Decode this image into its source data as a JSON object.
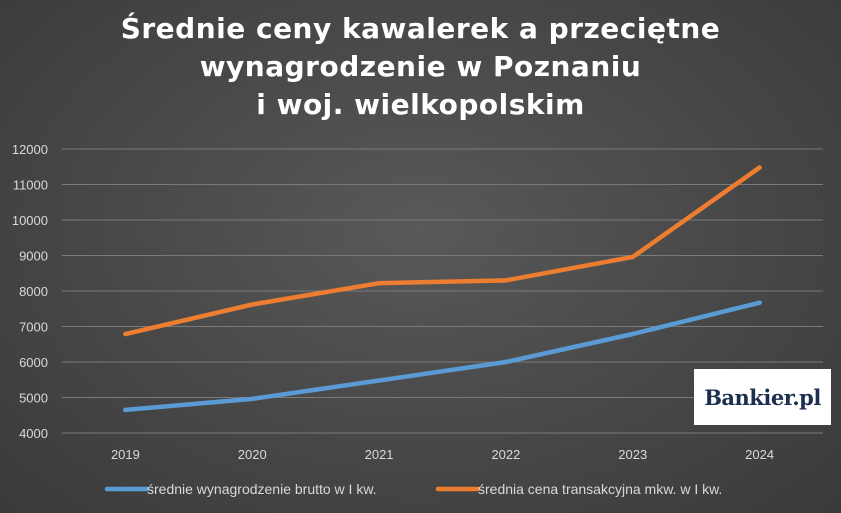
{
  "chart_data": {
    "type": "line",
    "title_lines": [
      "Średnie ceny kawalerek a przeciętne",
      "wynagrodzenie w Poznaniu",
      "i woj. wielkopolskim"
    ],
    "categories": [
      "2019",
      "2020",
      "2021",
      "2022",
      "2023",
      "2024"
    ],
    "ylim": [
      4000,
      12000
    ],
    "yticks": [
      4000,
      5000,
      6000,
      7000,
      8000,
      9000,
      10000,
      11000,
      12000
    ],
    "grid": true,
    "legend_position": "bottom",
    "series": [
      {
        "name": "średnie wynagrodzenie brutto w I kw.",
        "color": "#5b9bd5",
        "values": [
          4650,
          4960,
          5480,
          6000,
          6790,
          7670
        ]
      },
      {
        "name": "średnia cena transakcyjna mkw. w I kw.",
        "color": "#ed7d31",
        "values": [
          6790,
          7620,
          8220,
          8300,
          8960,
          11480
        ]
      }
    ]
  },
  "logo": {
    "text": "Bankier.pl"
  }
}
